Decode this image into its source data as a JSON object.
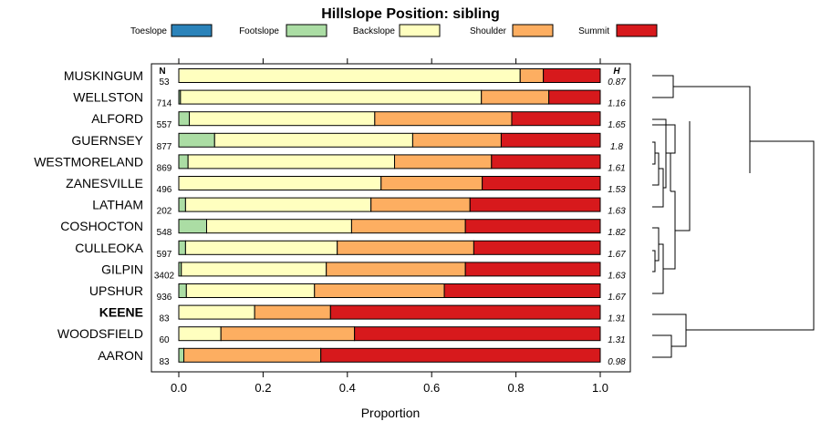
{
  "chart_data": {
    "type": "bar",
    "stacked": true,
    "orientation": "horizontal",
    "title": "Hillslope Position: sibling",
    "xlabel": "Proportion",
    "ylabel": "",
    "xlim": [
      0,
      1
    ],
    "x_ticks": [
      "0.0",
      "0.2",
      "0.4",
      "0.6",
      "0.8",
      "1.0"
    ],
    "n_header": "N",
    "h_header": "H",
    "highlight": "KEENE",
    "legend_position": "top",
    "categories": [
      "MUSKINGUM",
      "WELLSTON",
      "ALFORD",
      "GUERNSEY",
      "WESTMORELAND",
      "ZANESVILLE",
      "LATHAM",
      "COSHOCTON",
      "CULLEOKA",
      "GILPIN",
      "UPSHUR",
      "KEENE",
      "WOODSFIELD",
      "AARON"
    ],
    "n": [
      "53",
      "714",
      "557",
      "877",
      "869",
      "496",
      "202",
      "548",
      "597",
      "3402",
      "936",
      "83",
      "60",
      "83"
    ],
    "h": [
      "0.87",
      "1.16",
      "1.65",
      "1.8",
      "1.61",
      "1.53",
      "1.63",
      "1.82",
      "1.67",
      "1.63",
      "1.67",
      "1.31",
      "1.31",
      "0.98"
    ],
    "series": [
      {
        "name": "Toeslope",
        "color": "#2b83ba",
        "values": [
          0.0,
          0.0,
          0.0,
          0.0,
          0.0,
          0.0,
          0.0,
          0.0,
          0.0,
          0.0,
          0.0,
          0.0,
          0.0,
          0.0
        ]
      },
      {
        "name": "Footslope",
        "color": "#abdda4",
        "values": [
          0.0,
          0.004,
          0.025,
          0.085,
          0.022,
          0.0,
          0.016,
          0.066,
          0.016,
          0.006,
          0.018,
          0.0,
          0.0,
          0.012
        ]
      },
      {
        "name": "Backslope",
        "color": "#ffffbf",
        "values": [
          0.81,
          0.714,
          0.44,
          0.47,
          0.49,
          0.48,
          0.44,
          0.344,
          0.36,
          0.344,
          0.304,
          0.18,
          0.1,
          0.0
        ]
      },
      {
        "name": "Shoulder",
        "color": "#fdae61",
        "values": [
          0.055,
          0.16,
          0.325,
          0.21,
          0.23,
          0.24,
          0.235,
          0.27,
          0.324,
          0.33,
          0.308,
          0.18,
          0.317,
          0.325
        ]
      },
      {
        "name": "Summit",
        "color": "#d7191c",
        "values": [
          0.135,
          0.122,
          0.21,
          0.235,
          0.258,
          0.28,
          0.309,
          0.32,
          0.3,
          0.32,
          0.37,
          0.64,
          0.583,
          0.663
        ]
      }
    ]
  }
}
